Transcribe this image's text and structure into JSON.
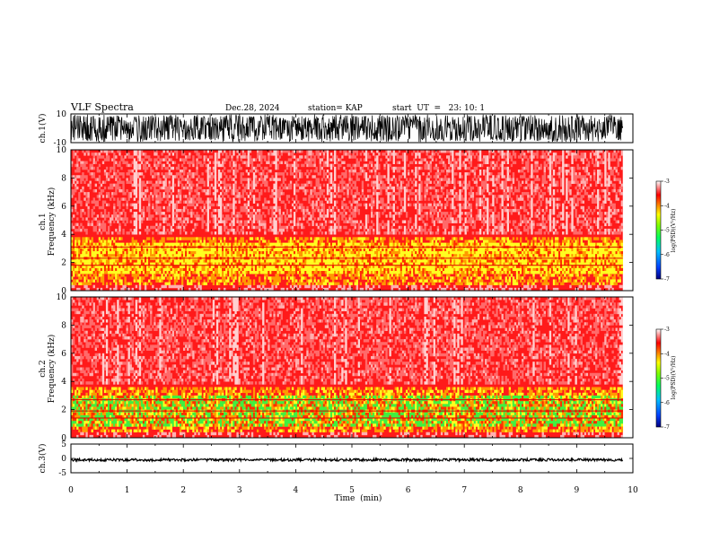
{
  "header": {
    "title": "VLF Spectra",
    "date": "Dec.28, 2024",
    "station": "station= KAP",
    "start": "start  UT  =   23: 10: 1"
  },
  "chart_data": [
    {
      "type": "line",
      "title": "ch.1 waveform",
      "ylabel": "ch.1(V)",
      "ylim": [
        -10,
        10
      ],
      "yticks": [
        "10",
        "-10"
      ],
      "xlim": [
        0,
        10
      ]
    },
    {
      "type": "heatmap",
      "title": "ch.1 spectrogram",
      "ylabel": [
        "ch.1",
        "Frequency  (kHz)"
      ],
      "ylim": [
        0,
        10
      ],
      "yticks": [
        "0",
        "2",
        "4",
        "6",
        "8",
        "10"
      ],
      "xlim": [
        0,
        10
      ],
      "data_end_min": 9.82,
      "colorbar": {
        "label": "log(PSD)(V²/Hz)",
        "range": [
          -7,
          -3
        ],
        "ticks": [
          "-3",
          "-4",
          "-5",
          "-6",
          "-7"
        ]
      },
      "dominant_bands_khz": [
        [
          0.4,
          3.8
        ]
      ],
      "dominant_level_bands_khz": [
        [
          1.2,
          3.4
        ]
      ]
    },
    {
      "type": "heatmap",
      "title": "ch.2 spectrogram",
      "ylabel": [
        "ch.2",
        "Frequency  (kHz)"
      ],
      "ylim": [
        0,
        10
      ],
      "yticks": [
        "0",
        "2",
        "4",
        "6",
        "8",
        "10"
      ],
      "xlim": [
        0,
        10
      ],
      "data_end_min": 9.82,
      "colorbar": {
        "label": "log(PSD)(V²/Hz)",
        "range": [
          -7,
          -3
        ],
        "ticks": [
          "-3",
          "-4",
          "-5",
          "-6",
          "-7"
        ]
      },
      "dominant_bands_khz": [
        [
          0.5,
          3.6
        ]
      ],
      "dominant_level_bands_khz": [
        [
          0.8,
          3.0
        ]
      ]
    },
    {
      "type": "line",
      "title": "ch.3 waveform",
      "ylabel": "ch.3(V)",
      "ylim": [
        -5,
        5
      ],
      "yticks": [
        "5",
        "0",
        "-5"
      ],
      "xlim": [
        0,
        10
      ],
      "approx_level_v": -0.5,
      "xlabel": "Time  (min)",
      "xticks": [
        "0",
        "1",
        "2",
        "3",
        "4",
        "5",
        "6",
        "7",
        "8",
        "9",
        "10"
      ]
    }
  ],
  "colors": {
    "background": "#ffffff",
    "axes": "#000000",
    "colormap": [
      "#000080",
      "#0040ff",
      "#00c0ff",
      "#00ff60",
      "#80ff00",
      "#ffff00",
      "#ff8000",
      "#ff0000",
      "#ffffff"
    ]
  }
}
